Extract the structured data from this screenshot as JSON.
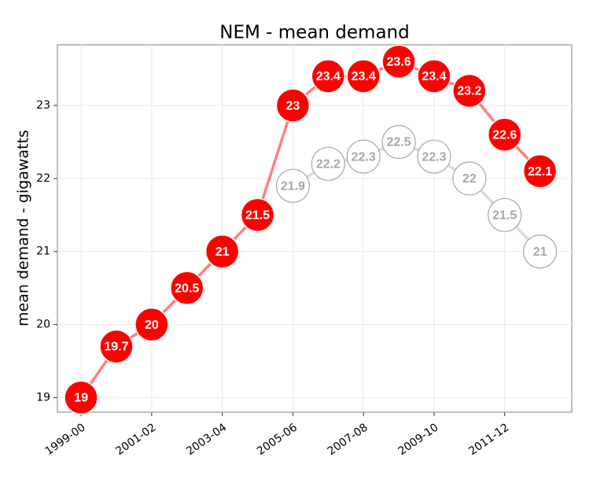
{
  "chart_data": {
    "type": "line",
    "title": "NEM - mean demand",
    "y_label": "mean demand - gigawatts",
    "categories": [
      "1999-00",
      null,
      "2001-02",
      null,
      "2003-04",
      null,
      "2005-06",
      null,
      "2007-08",
      null,
      "2009-10",
      null,
      "2011-12",
      null
    ],
    "series": [
      {
        "color": "#ff0000",
        "values": [
          19,
          19.7,
          20,
          20.5,
          21,
          21.5,
          23,
          23.4,
          23.4,
          23.6,
          23.4,
          23.2,
          22.6,
          22.1
        ]
      },
      {
        "color": "#a6a6a6",
        "values": [
          null,
          null,
          null,
          null,
          null,
          null,
          21.9,
          22.2,
          22.3,
          22.5,
          22.3,
          22,
          21.5,
          21
        ]
      }
    ],
    "ylim": [
      18.8,
      23.83
    ],
    "yticks": [
      19,
      20,
      21,
      22,
      23
    ],
    "grid": true
  }
}
